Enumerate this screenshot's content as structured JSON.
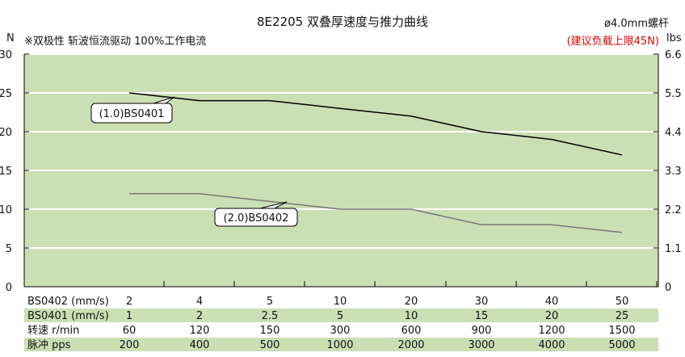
{
  "header": {
    "title": "8E2205 双叠厚速度与推力曲线",
    "screw": "ø4.0mm螺杆",
    "note": "※双极性 斩波恒流驱动 100%工作电流",
    "recommendation": "(建议负载上限45N)",
    "left_unit": "N",
    "right_unit": "lbs"
  },
  "colors": {
    "plot_bg": "#cbdfb5",
    "row_band": "#cbdfb5",
    "grid": "#ffffff",
    "series_bs0401": "#000000",
    "series_bs0402": "#777777",
    "recommendation_text": "#e00000"
  },
  "chart_data": {
    "type": "line",
    "title": "8E2205 双叠厚速度与推力曲线",
    "ylabel": "N",
    "y2label": "lbs",
    "ylim": [
      0,
      30
    ],
    "yticks": [
      "0",
      "5",
      "10",
      "15",
      "20",
      "25",
      "30"
    ],
    "y2ticks": [
      "0",
      "1.1",
      "2.2",
      "3.3",
      "4.4",
      "5.5",
      "6.6"
    ],
    "grid": true,
    "series": [
      {
        "name": "(1.0)BS0401",
        "x": [
          "2",
          "4",
          "5",
          "10",
          "20",
          "30",
          "40",
          "50"
        ],
        "y": [
          25,
          24,
          24,
          23,
          22,
          20,
          19,
          17
        ]
      },
      {
        "name": "(2.0)BS0402",
        "x": [
          "2",
          "4",
          "5",
          "10",
          "20",
          "30",
          "40",
          "50"
        ],
        "y": [
          12,
          12,
          11,
          10,
          10,
          8,
          8,
          7
        ]
      }
    ],
    "table": [
      {
        "label": "BS0402 (mm/s)",
        "values": [
          "2",
          "4",
          "5",
          "10",
          "20",
          "30",
          "40",
          "50"
        ]
      },
      {
        "label": "BS0401 (mm/s)",
        "values": [
          "1",
          "2",
          "2.5",
          "5",
          "10",
          "15",
          "20",
          "25"
        ]
      },
      {
        "label": "转速 r/min",
        "values": [
          "60",
          "120",
          "150",
          "300",
          "600",
          "900",
          "1200",
          "1500"
        ]
      },
      {
        "label": "脉冲 pps",
        "values": [
          "200",
          "400",
          "500",
          "1000",
          "2000",
          "3000",
          "4000",
          "5000"
        ]
      }
    ]
  }
}
